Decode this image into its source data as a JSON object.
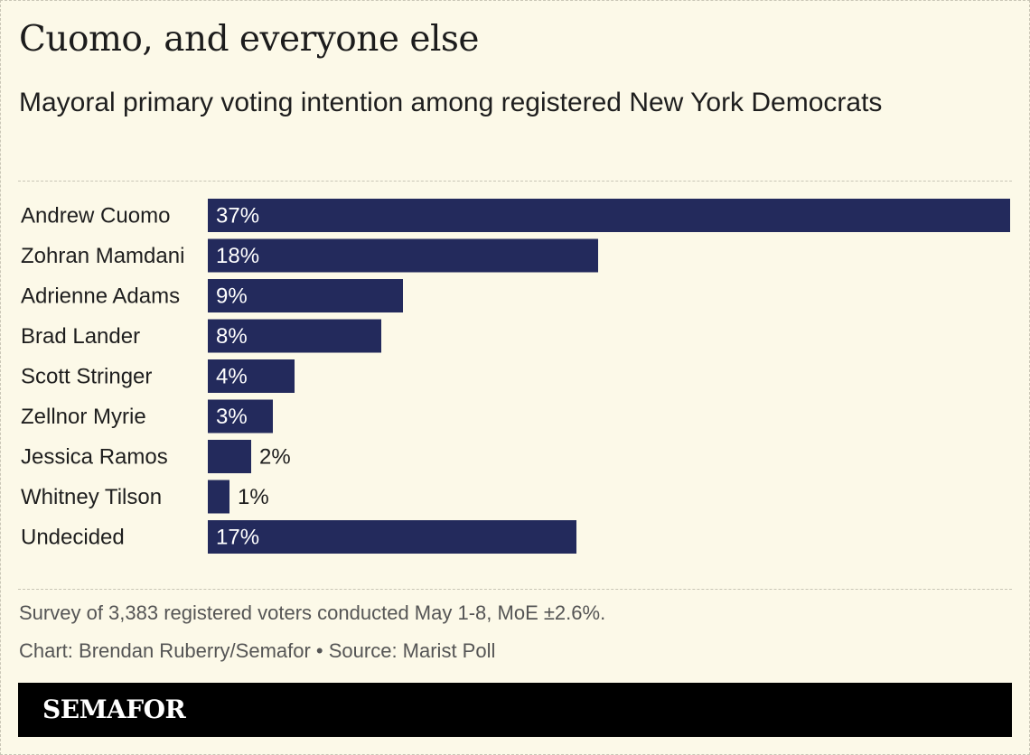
{
  "chart_data": {
    "type": "bar",
    "orientation": "horizontal",
    "title": "Cuomo, and everyone else",
    "subtitle": "Mayoral primary voting intention among registered New York Democrats",
    "categories": [
      "Andrew Cuomo",
      "Zohran Mamdani",
      "Adrienne Adams",
      "Brad Lander",
      "Scott Stringer",
      "Zellnor Myrie",
      "Jessica Ramos",
      "Whitney Tilson",
      "Undecided"
    ],
    "values": [
      37,
      18,
      9,
      8,
      4,
      3,
      2,
      1,
      17
    ],
    "value_labels": [
      "37%",
      "18%",
      "9%",
      "8%",
      "4%",
      "3%",
      "2%",
      "1%",
      "17%"
    ],
    "unit": "%",
    "xlim": [
      0,
      37
    ],
    "xlabel": "",
    "ylabel": "",
    "grid": false,
    "bar_color": "#232a5c"
  },
  "footer": {
    "note": "Survey of 3,383 registered voters conducted May 1-8, MoE ±2.6%.",
    "credit": "Chart: Brendan Ruberry/Semafor • Source: Marist Poll",
    "brand": "SEMAFOR"
  },
  "colors": {
    "background": "#fcf9e8",
    "bar": "#232a5c",
    "brand_bar": "#000000"
  }
}
